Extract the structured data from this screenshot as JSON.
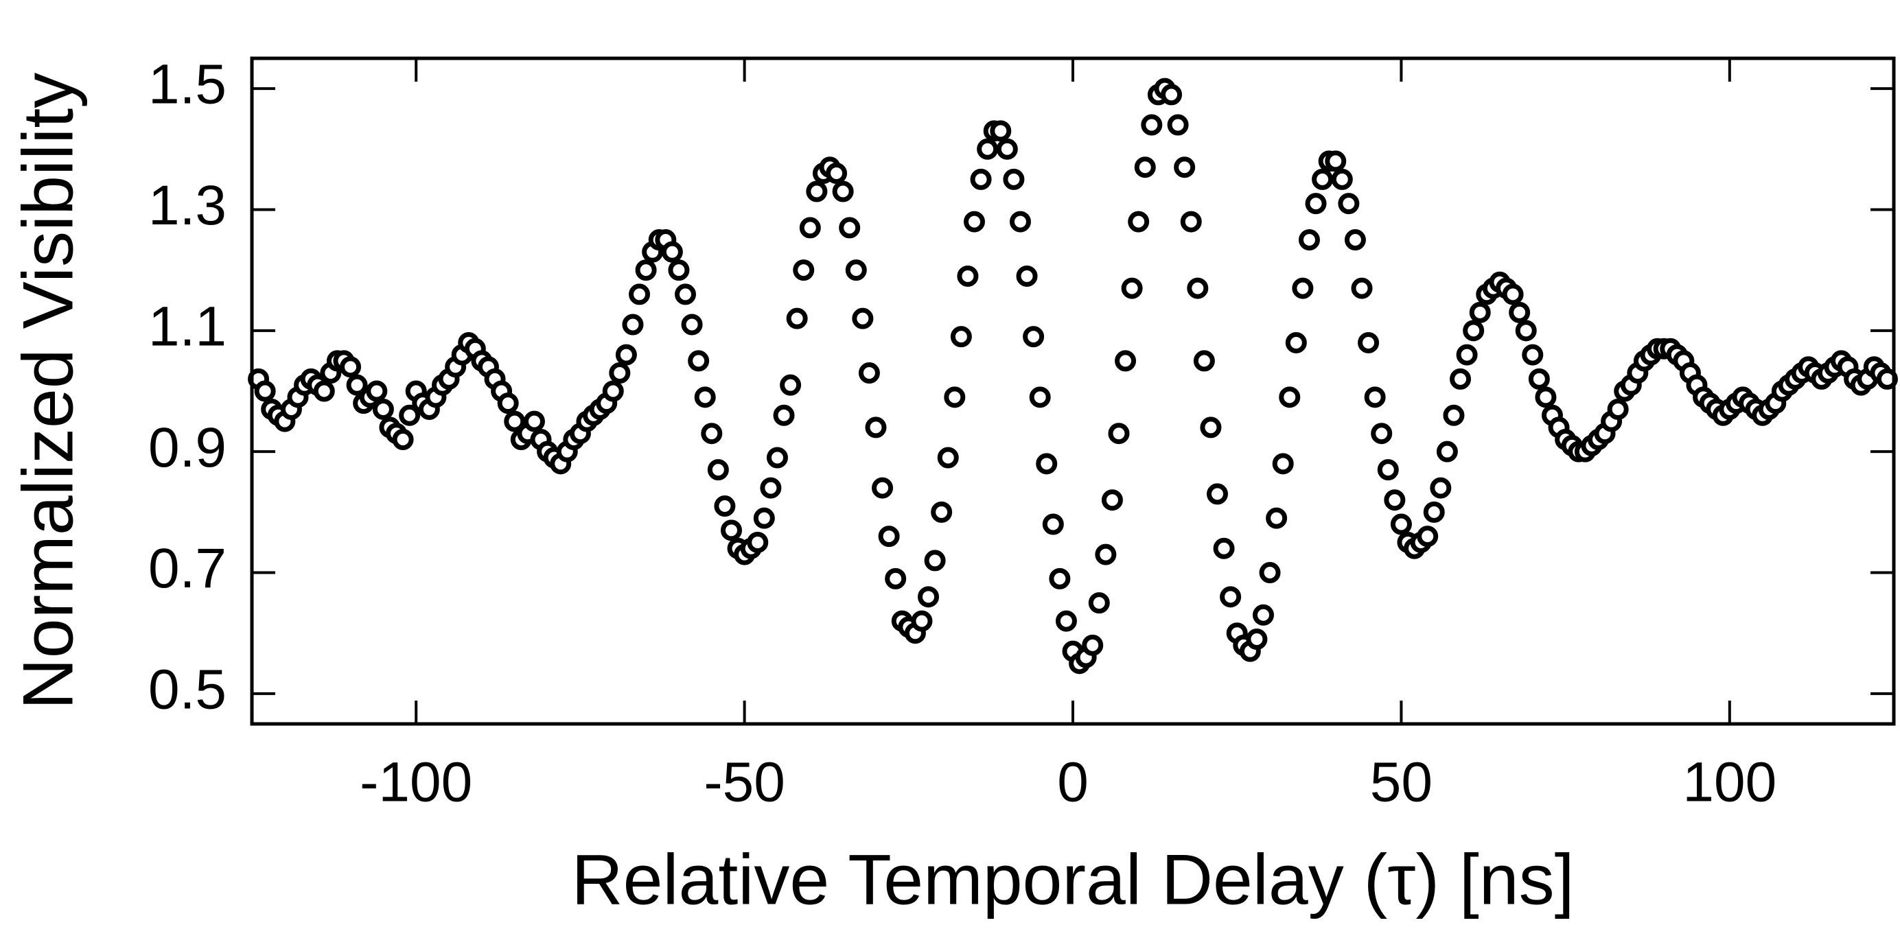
{
  "chart_data": {
    "type": "scatter",
    "x_label": "Relative Temporal Delay (τ) [ns]",
    "y_label": "Normalized Visibility",
    "color": "#000000",
    "xlim": [
      -125,
      125
    ],
    "ylim": [
      0.45,
      1.55
    ],
    "xticks": [
      -100,
      -50,
      0,
      50,
      100
    ],
    "yticks": [
      0.5,
      0.7,
      0.9,
      1.1,
      1.3,
      1.5
    ],
    "x": [
      -124,
      -123,
      -122,
      -121,
      -120,
      -119,
      -118,
      -117,
      -116,
      -115,
      -114,
      -113,
      -112,
      -111,
      -110,
      -109,
      -108,
      -107,
      -106,
      -105,
      -104,
      -103,
      -102,
      -101,
      -100,
      -99,
      -98,
      -97,
      -96,
      -95,
      -94,
      -93,
      -92,
      -91,
      -90,
      -89,
      -88,
      -87,
      -86,
      -85,
      -84,
      -83,
      -82,
      -81,
      -80,
      -79,
      -78,
      -77,
      -76,
      -75,
      -74,
      -73,
      -72,
      -71,
      -70,
      -69,
      -68,
      -67,
      -66,
      -65,
      -64,
      -63,
      -62,
      -61,
      -60,
      -59,
      -58,
      -57,
      -56,
      -55,
      -54,
      -53,
      -52,
      -51,
      -50,
      -49,
      -48,
      -47,
      -46,
      -45,
      -44,
      -43,
      -42,
      -41,
      -40,
      -39,
      -38,
      -37,
      -36,
      -35,
      -34,
      -33,
      -32,
      -31,
      -30,
      -29,
      -28,
      -27,
      -26,
      -25,
      -24,
      -23,
      -22,
      -21,
      -20,
      -19,
      -18,
      -17,
      -16,
      -15,
      -14,
      -13,
      -12,
      -11,
      -10,
      -9,
      -8,
      -7,
      -6,
      -5,
      -4,
      -3,
      -2,
      -1,
      0,
      1,
      2,
      3,
      4,
      5,
      6,
      7,
      8,
      9,
      10,
      11,
      12,
      13,
      14,
      15,
      16,
      17,
      18,
      19,
      20,
      21,
      22,
      23,
      24,
      25,
      26,
      27,
      28,
      29,
      30,
      31,
      32,
      33,
      34,
      35,
      36,
      37,
      38,
      39,
      40,
      41,
      42,
      43,
      44,
      45,
      46,
      47,
      48,
      49,
      50,
      51,
      52,
      53,
      54,
      55,
      56,
      57,
      58,
      59,
      60,
      61,
      62,
      63,
      64,
      65,
      66,
      67,
      68,
      69,
      70,
      71,
      72,
      73,
      74,
      75,
      76,
      77,
      78,
      79,
      80,
      81,
      82,
      83,
      84,
      85,
      86,
      87,
      88,
      89,
      90,
      91,
      92,
      93,
      94,
      95,
      96,
      97,
      98,
      99,
      100,
      101,
      102,
      103,
      104,
      105,
      106,
      107,
      108,
      109,
      110,
      111,
      112,
      113,
      114,
      115,
      116,
      117,
      118,
      119,
      120,
      121,
      122,
      123,
      124
    ],
    "values": [
      1.02,
      1.0,
      0.97,
      0.96,
      0.95,
      0.97,
      0.99,
      1.01,
      1.02,
      1.01,
      1.0,
      1.03,
      1.05,
      1.05,
      1.04,
      1.01,
      0.98,
      0.99,
      1.0,
      0.97,
      0.94,
      0.93,
      0.92,
      0.96,
      1.0,
      0.98,
      0.97,
      0.99,
      1.01,
      1.02,
      1.04,
      1.06,
      1.08,
      1.07,
      1.05,
      1.04,
      1.02,
      1.0,
      0.98,
      0.95,
      0.92,
      0.93,
      0.95,
      0.92,
      0.9,
      0.89,
      0.88,
      0.9,
      0.92,
      0.93,
      0.95,
      0.96,
      0.97,
      0.98,
      1.0,
      1.03,
      1.06,
      1.11,
      1.16,
      1.2,
      1.23,
      1.25,
      1.25,
      1.23,
      1.2,
      1.16,
      1.11,
      1.05,
      0.99,
      0.93,
      0.87,
      0.81,
      0.77,
      0.74,
      0.73,
      0.74,
      0.75,
      0.79,
      0.84,
      0.89,
      0.96,
      1.01,
      1.12,
      1.2,
      1.27,
      1.33,
      1.36,
      1.37,
      1.36,
      1.33,
      1.27,
      1.2,
      1.12,
      1.03,
      0.94,
      0.84,
      0.76,
      0.69,
      0.62,
      0.61,
      0.6,
      0.62,
      0.66,
      0.72,
      0.8,
      0.89,
      0.99,
      1.09,
      1.19,
      1.28,
      1.35,
      1.4,
      1.43,
      1.43,
      1.4,
      1.35,
      1.28,
      1.19,
      1.09,
      0.99,
      0.88,
      0.78,
      0.69,
      0.62,
      0.57,
      0.55,
      0.56,
      0.58,
      0.65,
      0.73,
      0.82,
      0.93,
      1.05,
      1.17,
      1.28,
      1.37,
      1.44,
      1.49,
      1.5,
      1.49,
      1.44,
      1.37,
      1.28,
      1.17,
      1.05,
      0.94,
      0.83,
      0.74,
      0.66,
      0.6,
      0.58,
      0.57,
      0.59,
      0.63,
      0.7,
      0.79,
      0.88,
      0.99,
      1.08,
      1.17,
      1.25,
      1.31,
      1.35,
      1.38,
      1.38,
      1.35,
      1.31,
      1.25,
      1.17,
      1.08,
      0.99,
      0.93,
      0.87,
      0.82,
      0.78,
      0.75,
      0.74,
      0.75,
      0.76,
      0.8,
      0.84,
      0.9,
      0.96,
      1.02,
      1.06,
      1.1,
      1.13,
      1.16,
      1.17,
      1.18,
      1.17,
      1.16,
      1.13,
      1.1,
      1.06,
      1.02,
      0.99,
      0.96,
      0.94,
      0.92,
      0.91,
      0.9,
      0.9,
      0.91,
      0.92,
      0.93,
      0.95,
      0.97,
      1.0,
      1.01,
      1.03,
      1.05,
      1.06,
      1.07,
      1.07,
      1.07,
      1.06,
      1.05,
      1.03,
      1.01,
      0.99,
      0.98,
      0.97,
      0.96,
      0.97,
      0.98,
      0.99,
      0.98,
      0.97,
      0.96,
      0.97,
      0.98,
      1.0,
      1.01,
      1.02,
      1.03,
      1.04,
      1.03,
      1.02,
      1.03,
      1.04,
      1.05,
      1.04,
      1.02,
      1.01,
      1.02,
      1.04,
      1.03,
      1.02
    ]
  }
}
